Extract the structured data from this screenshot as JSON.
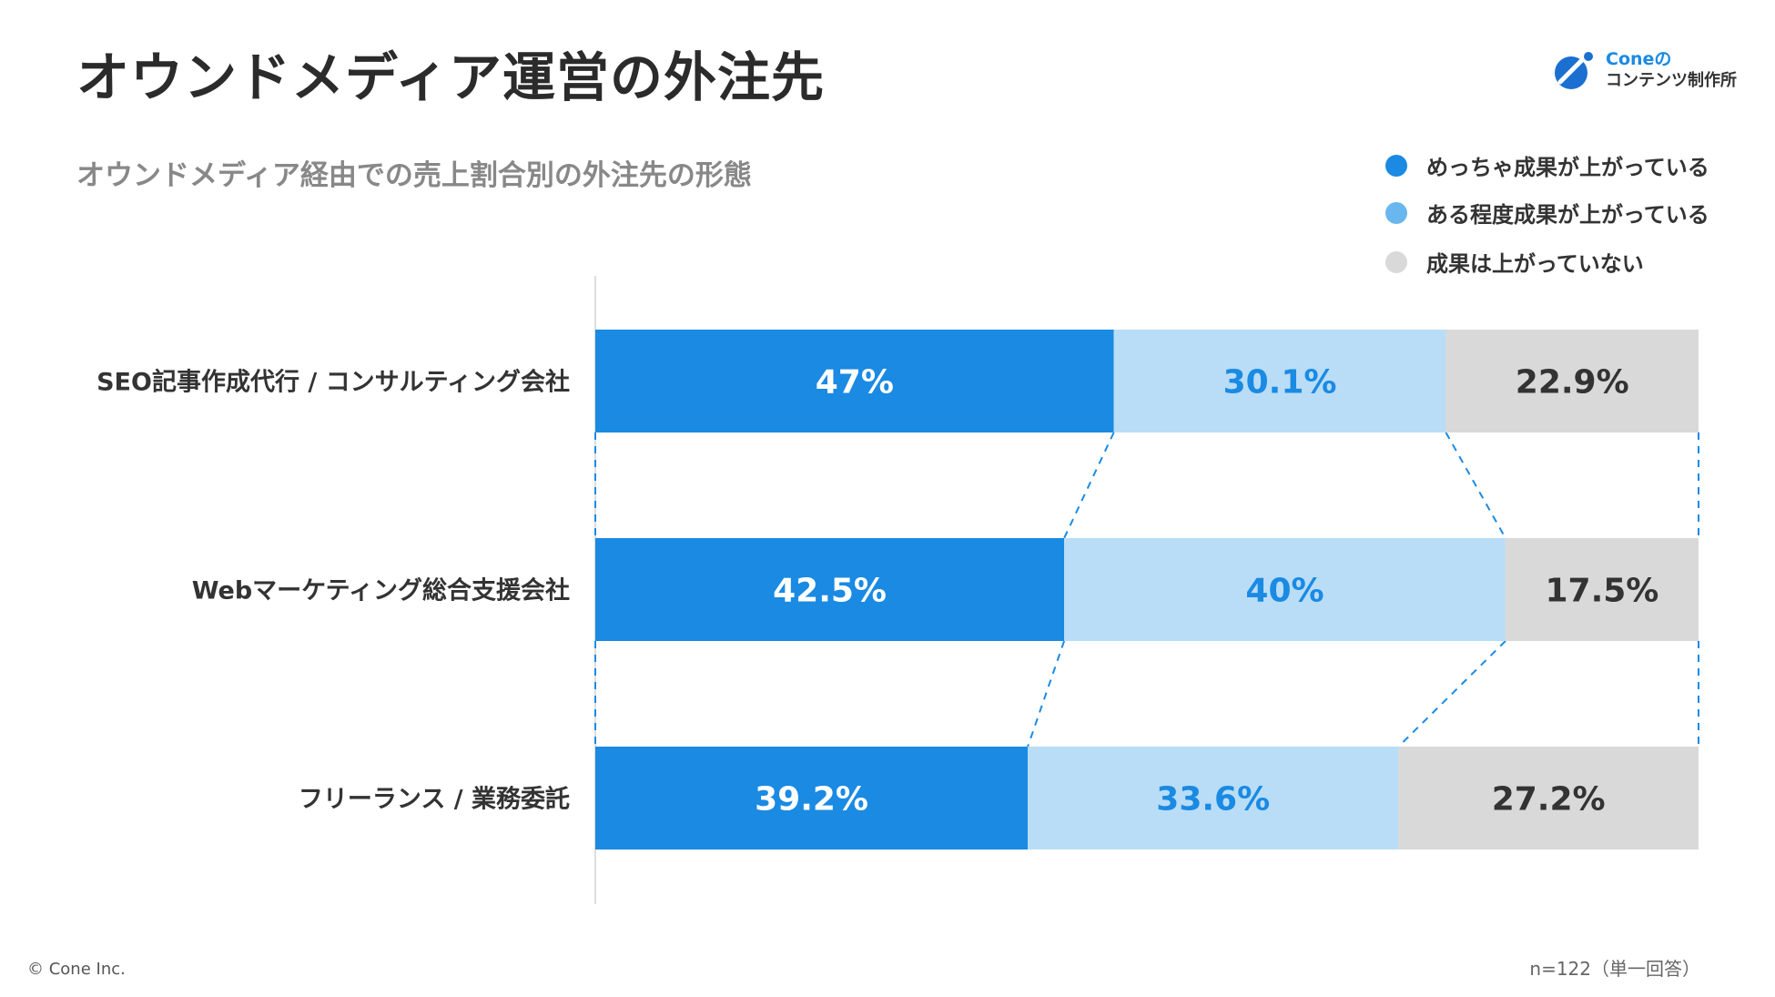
{
  "header": {
    "title": "オウンドメディア運営の外注先",
    "subtitle": "オウンドメディア経由での売上割合別の外注先の形態"
  },
  "logo": {
    "line1": "Coneの",
    "line2": "コンテンツ制作所"
  },
  "chart_data": {
    "type": "bar",
    "orientation": "horizontal",
    "stacked": "100%",
    "categories": [
      "SEO記事作成代行 / コンサルティング会社",
      "Webマーケティング総合支援会社",
      "フリーランス / 業務委託"
    ],
    "series": [
      {
        "name": "めっちゃ成果が上がっている",
        "values": [
          47,
          42.5,
          39.2
        ],
        "labels": [
          "47%",
          "42.5%",
          "39.2%"
        ],
        "color": "#1a8ae3",
        "label_color": "#ffffff"
      },
      {
        "name": "ある程度成果が上がっている",
        "values": [
          30.1,
          40,
          33.6
        ],
        "labels": [
          "30.1%",
          "40%",
          "33.6%"
        ],
        "color": "#b9ddf6",
        "label_color": "#1a8ae3"
      },
      {
        "name": "成果は上がっていない",
        "values": [
          22.9,
          17.5,
          27.2
        ],
        "labels": [
          "22.9%",
          "17.5%",
          "27.2%"
        ],
        "color": "#d9d9d9",
        "label_color": "#333333"
      }
    ],
    "legend_position": "top-right",
    "connector_lines": "dashed"
  },
  "footer": {
    "copyright": "© Cone Inc.",
    "note": "n=122（単一回答）"
  }
}
